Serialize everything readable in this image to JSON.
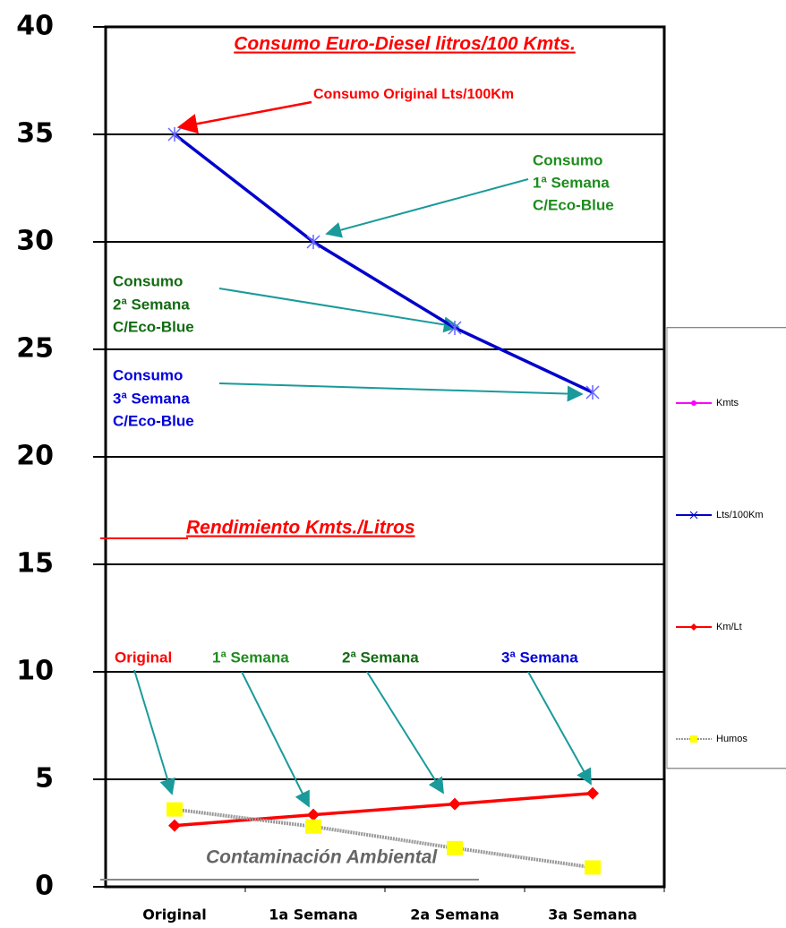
{
  "chart_data": {
    "type": "line",
    "title": "Consumo Euro-Diesel litros/100 Kmts.",
    "categories": [
      "Original",
      "1a Semana",
      "2a Semana",
      "3a Semana"
    ],
    "series": [
      {
        "name": "Kmts",
        "color": "#ff00ff",
        "marker": "circle",
        "values": [
          null,
          null,
          null,
          null
        ]
      },
      {
        "name": "Lts/100Km",
        "color": "#0000cc",
        "marker": "star",
        "values": [
          35,
          30,
          26,
          23
        ]
      },
      {
        "name": "Km/Lt",
        "color": "#ff0000",
        "marker": "diamond",
        "values": [
          2.85,
          3.35,
          3.85,
          4.35
        ]
      },
      {
        "name": "Humos",
        "color": "#999999",
        "marker": "square",
        "values": [
          3.6,
          2.8,
          1.8,
          0.9
        ]
      }
    ],
    "ylim": [
      0,
      40
    ],
    "yticks": [
      0,
      5,
      10,
      15,
      20,
      25,
      30,
      35,
      40
    ],
    "grid": true,
    "annotations": {
      "original": "Consumo Original Lts/100Km",
      "week1": [
        "Consumo",
        "1ª Semana",
        "C/Eco-Blue"
      ],
      "week2": [
        "Consumo",
        "2ª Semana",
        "C/Eco-Blue"
      ],
      "week3": [
        "Consumo",
        "3ª Semana",
        "C/Eco-Blue"
      ],
      "rendimiento": "Rendimiento Kmts./Litros",
      "labels": [
        "Original",
        "1ª Semana",
        "2ª Semana",
        "3ª Semana"
      ],
      "contaminacion": "Contaminación Ambiental"
    }
  }
}
